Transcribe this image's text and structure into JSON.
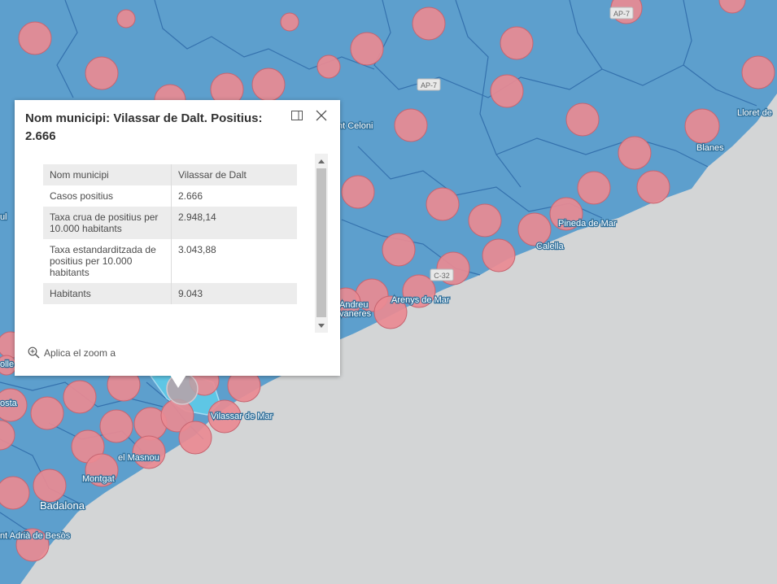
{
  "popup": {
    "title": "Nom municipi: Vilassar de Dalt. Positius: 2.666",
    "fields": [
      {
        "key": "Nom municipi",
        "value": "Vilassar de Dalt"
      },
      {
        "key": "Casos positius",
        "value": "2.666"
      },
      {
        "key": "Taxa crua de positius per 10.000 habitants",
        "value": "2.948,14"
      },
      {
        "key": "Taxa estandarditzada de positius per 10.000 habitants",
        "value": "3.043,88"
      },
      {
        "key": "Habitants",
        "value": "9.043"
      }
    ],
    "zoom_label": "Aplica el zoom a",
    "icons": {
      "dock": "dock-icon",
      "close": "close-icon",
      "zoom": "zoom-in-icon"
    }
  },
  "map": {
    "colors": {
      "land": "#5d9fcd",
      "sea": "#d3d5d6",
      "border": "#2e6aa8",
      "bubble": "#e98a92",
      "bubble_stroke": "#c76470",
      "selected": "#5fd4ee"
    },
    "places": {
      "lloret": "Lloret de",
      "blanes": "Blanes",
      "pineda": "Pineda de Mar",
      "calella": "Calella",
      "arenys": "Arenys de Mar",
      "andreu": "Andreu",
      "vaneres": "vaneres",
      "celoni": "nt Celoni",
      "vilassar_mar": "Vilassar de Mar",
      "masnou": "el Masnou",
      "montgat": "Montgat",
      "badalona": "Badalona",
      "adria": "nt Adrià de Besòs",
      "gosta": "osta",
      "olle": "olle",
      "ul": "ul"
    },
    "roads": {
      "ap7_north": "AP-7",
      "ap7_mid": "AP-7",
      "c32": "C-32"
    }
  }
}
